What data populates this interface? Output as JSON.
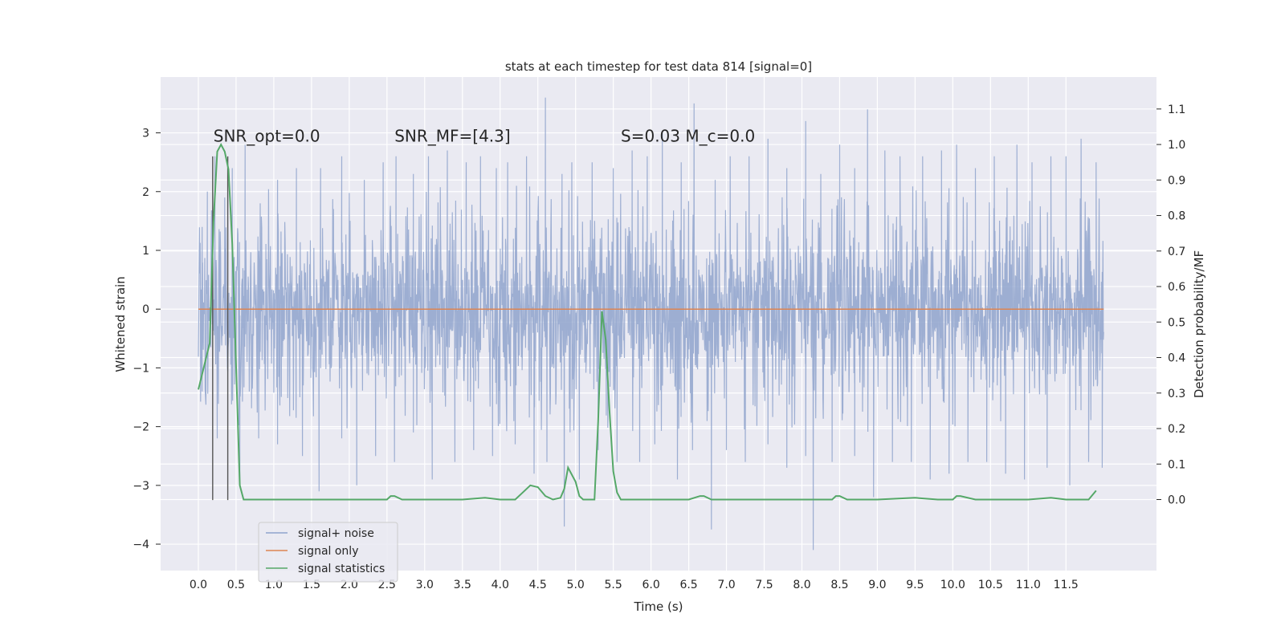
{
  "chart_data": {
    "type": "line",
    "title": "stats at each timestep for test data 814 [signal=0]",
    "xlabel": "Time (s)",
    "ylabel": "Whitened strain",
    "y2label": "Detection probability/MF",
    "xlim": [
      -0.5,
      12.7
    ],
    "ylim": [
      -4.45,
      3.95
    ],
    "y2lim": [
      -0.2,
      1.19
    ],
    "x_ticks": [
      "0.0",
      "0.5",
      "1.0",
      "1.5",
      "2.0",
      "2.5",
      "3.0",
      "3.5",
      "4.0",
      "4.5",
      "5.0",
      "5.5",
      "6.0",
      "6.5",
      "7.0",
      "7.5",
      "8.0",
      "8.5",
      "9.0",
      "9.5",
      "10.0",
      "10.5",
      "11.0",
      "11.5"
    ],
    "y_ticks": [
      "−4",
      "−3",
      "−2",
      "−1",
      "0",
      "1",
      "2",
      "3"
    ],
    "y2_ticks": [
      "0.0",
      "0.1",
      "0.2",
      "0.3",
      "0.4",
      "0.5",
      "0.6",
      "0.7",
      "0.8",
      "0.9",
      "1.0",
      "1.1"
    ],
    "grid": true,
    "legend_placement": "lower-left",
    "annotations": [
      {
        "text": "SNR_opt=0.0",
        "x": 0.2,
        "y": 2.85
      },
      {
        "text": "SNR_MF=[4.3]",
        "x": 2.6,
        "y": 2.85
      },
      {
        "text": "S=0.03   M_c=0.0",
        "x": 5.6,
        "y": 2.85
      }
    ],
    "vertical_markers": [
      {
        "x": 0.19,
        "y_from": -3.25,
        "y_to": 2.6
      },
      {
        "x": 0.39,
        "y_from": -3.25,
        "y_to": 2.6
      }
    ],
    "series": [
      {
        "name": "signal+ noise",
        "color": "#8fa3cc",
        "x_range": [
          0.0,
          12.0
        ],
        "typical_envelope": [
          -1.5,
          1.5
        ],
        "peaks_up": [
          [
            0.05,
            1.4
          ],
          [
            0.12,
            2.0
          ],
          [
            0.22,
            2.6
          ],
          [
            0.35,
            1.9
          ],
          [
            0.45,
            2.4
          ],
          [
            0.62,
            2.8
          ],
          [
            0.82,
            1.8
          ],
          [
            1.05,
            2.2
          ],
          [
            1.3,
            2.4
          ],
          [
            1.62,
            2.4
          ],
          [
            1.9,
            2.6
          ],
          [
            2.2,
            2.2
          ],
          [
            2.45,
            2.5
          ],
          [
            2.62,
            2.6
          ],
          [
            2.85,
            2.3
          ],
          [
            3.05,
            2.6
          ],
          [
            3.3,
            2.7
          ],
          [
            3.55,
            2.5
          ],
          [
            3.74,
            2.6
          ],
          [
            3.95,
            2.4
          ],
          [
            4.1,
            2.5
          ],
          [
            4.35,
            2.6
          ],
          [
            4.6,
            3.6
          ],
          [
            4.82,
            2.3
          ],
          [
            4.95,
            2.5
          ],
          [
            5.22,
            2.5
          ],
          [
            5.5,
            2.4
          ],
          [
            5.75,
            2.7
          ],
          [
            5.95,
            2.6
          ],
          [
            6.15,
            3.0
          ],
          [
            6.4,
            2.5
          ],
          [
            6.57,
            3.5
          ],
          [
            6.85,
            2.2
          ],
          [
            7.05,
            2.6
          ],
          [
            7.3,
            2.6
          ],
          [
            7.55,
            2.9
          ],
          [
            7.8,
            2.4
          ],
          [
            8.05,
            3.2
          ],
          [
            8.25,
            2.3
          ],
          [
            8.5,
            2.8
          ],
          [
            8.7,
            2.4
          ],
          [
            8.87,
            3.4
          ],
          [
            9.1,
            2.7
          ],
          [
            9.3,
            2.6
          ],
          [
            9.6,
            2.6
          ],
          [
            9.85,
            2.7
          ],
          [
            10.05,
            2.8
          ],
          [
            10.3,
            2.4
          ],
          [
            10.55,
            2.6
          ],
          [
            10.85,
            2.8
          ],
          [
            11.05,
            2.5
          ],
          [
            11.3,
            2.6
          ],
          [
            11.5,
            2.6
          ],
          [
            11.7,
            2.9
          ],
          [
            11.9,
            2.5
          ]
        ],
        "peaks_down": [
          [
            0.05,
            -1.4
          ],
          [
            0.25,
            -2.2
          ],
          [
            0.55,
            -3.0
          ],
          [
            0.8,
            -2.2
          ],
          [
            1.05,
            -2.3
          ],
          [
            1.38,
            -2.5
          ],
          [
            1.6,
            -3.1
          ],
          [
            1.9,
            -2.2
          ],
          [
            2.1,
            -3.0
          ],
          [
            2.35,
            -2.5
          ],
          [
            2.6,
            -2.6
          ],
          [
            2.85,
            -2.1
          ],
          [
            3.1,
            -2.9
          ],
          [
            3.4,
            -2.6
          ],
          [
            3.65,
            -2.4
          ],
          [
            3.9,
            -2.5
          ],
          [
            4.2,
            -2.3
          ],
          [
            4.45,
            -2.8
          ],
          [
            4.62,
            -2.6
          ],
          [
            4.85,
            -3.7
          ],
          [
            5.05,
            -2.9
          ],
          [
            5.3,
            -2.4
          ],
          [
            5.55,
            -2.6
          ],
          [
            5.85,
            -2.6
          ],
          [
            6.05,
            -2.3
          ],
          [
            6.35,
            -2.9
          ],
          [
            6.55,
            -2.4
          ],
          [
            6.8,
            -3.75
          ],
          [
            7.0,
            -2.4
          ],
          [
            7.25,
            -2.6
          ],
          [
            7.55,
            -2.3
          ],
          [
            7.8,
            -2.7
          ],
          [
            8.05,
            -2.5
          ],
          [
            8.15,
            -4.1
          ],
          [
            8.4,
            -2.6
          ],
          [
            8.7,
            -2.5
          ],
          [
            8.95,
            -3.2
          ],
          [
            9.2,
            -2.6
          ],
          [
            9.45,
            -2.6
          ],
          [
            9.7,
            -2.9
          ],
          [
            9.95,
            -2.8
          ],
          [
            10.2,
            -2.6
          ],
          [
            10.45,
            -2.6
          ],
          [
            10.7,
            -2.8
          ],
          [
            10.95,
            -2.9
          ],
          [
            11.25,
            -2.7
          ],
          [
            11.55,
            -3.0
          ],
          [
            11.8,
            -2.6
          ],
          [
            11.98,
            -2.7
          ]
        ]
      },
      {
        "name": "signal only",
        "color": "#dd8452",
        "x": [
          0.0,
          12.0
        ],
        "y": [
          0.0,
          0.0
        ]
      },
      {
        "name": "signal statistics",
        "color": "#55a868",
        "axis": "right",
        "x": [
          0.0,
          0.15,
          0.2,
          0.25,
          0.3,
          0.35,
          0.4,
          0.45,
          0.5,
          0.55,
          0.6,
          0.7,
          1.0,
          2.0,
          2.5,
          2.55,
          2.6,
          2.7,
          2.8,
          3.0,
          3.5,
          3.8,
          4.0,
          4.2,
          4.3,
          4.4,
          4.5,
          4.6,
          4.7,
          4.8,
          4.85,
          4.9,
          5.0,
          5.05,
          5.1,
          5.2,
          5.25,
          5.3,
          5.35,
          5.4,
          5.45,
          5.5,
          5.55,
          5.6,
          5.7,
          6.0,
          6.5,
          6.65,
          6.7,
          6.8,
          6.9,
          7.0,
          7.5,
          8.0,
          8.4,
          8.45,
          8.5,
          8.6,
          9.0,
          9.5,
          9.8,
          10.0,
          10.05,
          10.1,
          10.3,
          11.0,
          11.3,
          11.5,
          11.7,
          11.8,
          11.9
        ],
        "y": [
          0.31,
          0.44,
          0.78,
          0.98,
          1.0,
          0.98,
          0.93,
          0.72,
          0.38,
          0.04,
          0.0,
          0.0,
          0.0,
          0.0,
          0.0,
          0.01,
          0.01,
          0.0,
          0.0,
          0.0,
          0.0,
          0.005,
          0.0,
          0.0,
          0.02,
          0.04,
          0.035,
          0.01,
          0.0,
          0.005,
          0.03,
          0.09,
          0.05,
          0.01,
          0.0,
          0.0,
          0.0,
          0.22,
          0.53,
          0.45,
          0.25,
          0.08,
          0.02,
          0.0,
          0.0,
          0.0,
          0.0,
          0.01,
          0.01,
          0.0,
          0.0,
          0.0,
          0.0,
          0.0,
          0.0,
          0.01,
          0.01,
          0.0,
          0.0,
          0.005,
          0.0,
          0.0,
          0.01,
          0.01,
          0.0,
          0.0,
          0.005,
          0.0,
          0.0,
          0.0,
          0.025
        ]
      }
    ]
  }
}
